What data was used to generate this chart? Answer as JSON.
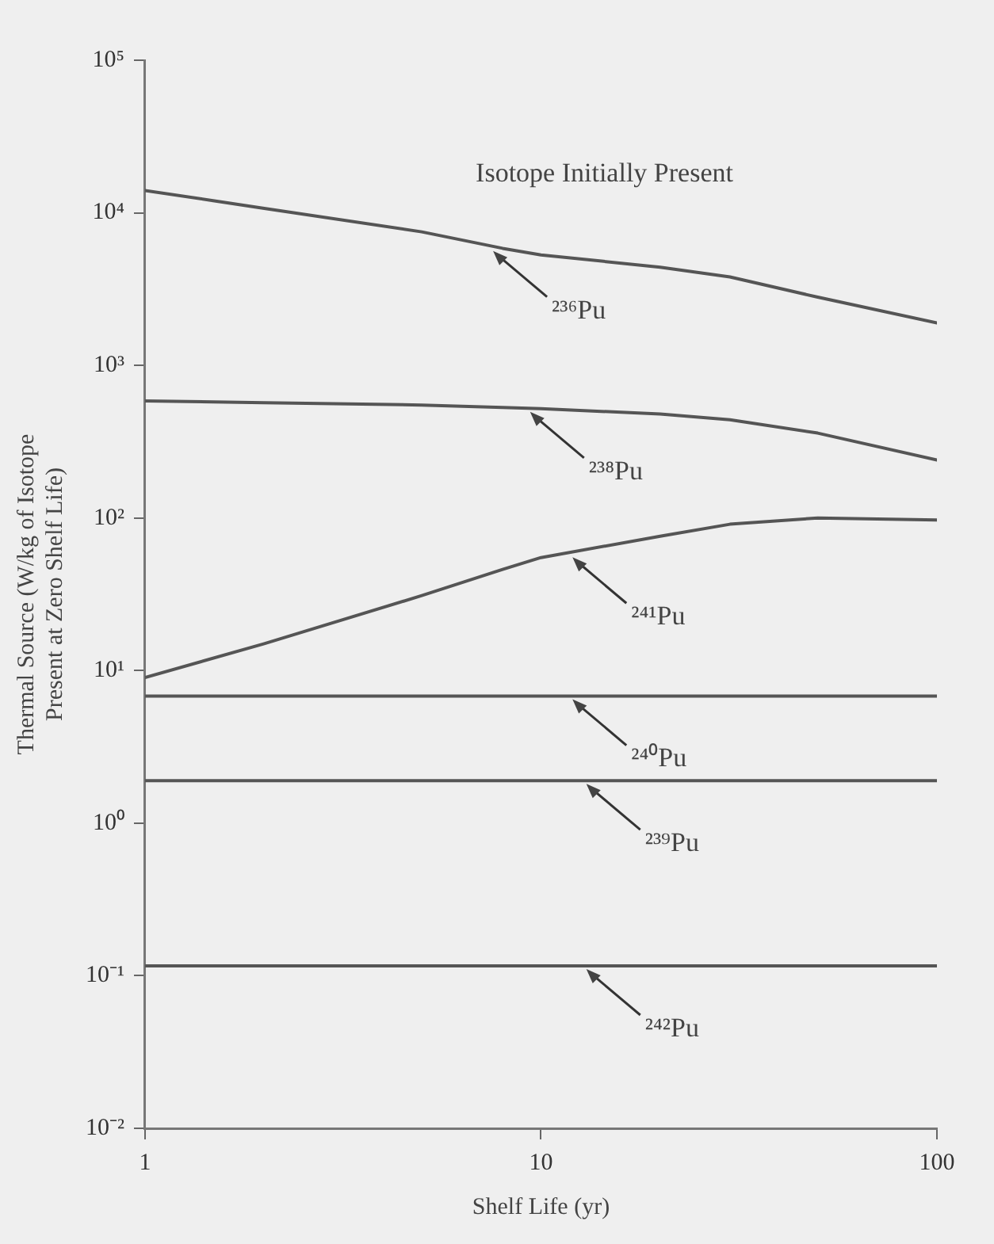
{
  "chart_data": {
    "type": "line",
    "xlabel": "Shelf Life (yr)",
    "ylabel": "Thermal Source (W/kg of Isotope\nPresent at Zero Shelf Life)",
    "log": "xy",
    "grid": false,
    "legend": false,
    "marker": "none",
    "line_style": "solid",
    "xlim": [
      1,
      100
    ],
    "xticks": [
      1,
      10,
      100
    ],
    "ylim": [
      0.01,
      100000
    ],
    "yticks": [
      {
        "value": 0.01,
        "label": "10⁻²"
      },
      {
        "value": 0.1,
        "label": "10⁻¹"
      },
      {
        "value": 1,
        "label": "10⁰"
      },
      {
        "value": 10,
        "label": "10¹"
      },
      {
        "value": 100,
        "label": "10²"
      },
      {
        "value": 1000,
        "label": "10³"
      },
      {
        "value": 10000,
        "label": "10⁴"
      },
      {
        "value": 100000,
        "label": "10⁵"
      }
    ],
    "x": [
      1,
      2,
      5,
      8,
      10,
      20,
      30,
      50,
      100
    ],
    "series": [
      {
        "color": "#555555",
        "values": [
          14000,
          10700,
          7500,
          5850,
          5300,
          4400,
          3800,
          2800,
          1900
        ]
      },
      {
        "color": "#555555",
        "values": [
          585,
          570,
          550,
          530,
          520,
          480,
          440,
          360,
          240
        ]
      },
      {
        "color": "#555555",
        "values": [
          9,
          15,
          31,
          46,
          55,
          76,
          91,
          100,
          97
        ]
      },
      {
        "color": "#555555",
        "values": [
          6.8,
          6.8,
          6.8,
          6.8,
          6.8,
          6.8,
          6.8,
          6.8,
          6.8
        ]
      },
      {
        "color": "#555555",
        "values": [
          1.9,
          1.9,
          1.9,
          1.9,
          1.9,
          1.9,
          1.9,
          1.9,
          1.9
        ]
      },
      {
        "color": "#555555",
        "values": [
          0.116,
          0.116,
          0.116,
          0.116,
          0.116,
          0.116,
          0.116,
          0.116,
          0.116
        ]
      }
    ],
    "annotations": [
      "Isotope Initially Present",
      {
        "text": "²³⁶Pu",
        "x": 7.5,
        "y": 5900
      },
      {
        "text": "²³⁸Pu",
        "x": 9.3,
        "y": 520
      },
      {
        "text": "²⁴¹Pu",
        "x": 11.9,
        "y": 58
      },
      {
        "text": "²⁴⁰Pu",
        "x": 11.9,
        "y": 6.8
      },
      {
        "text": "²³⁹Pu",
        "x": 12.9,
        "y": 1.9
      },
      {
        "text": "²⁴²Pu",
        "x": 12.9,
        "y": 0.116
      }
    ]
  }
}
